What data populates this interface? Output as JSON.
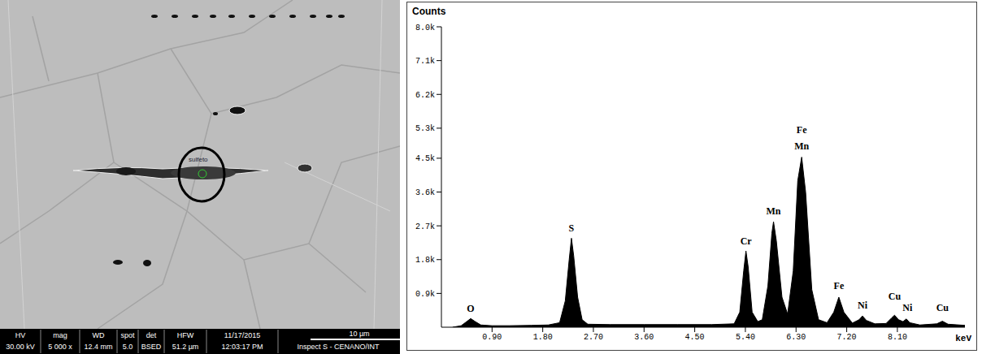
{
  "micrograph": {
    "label": "sulfeto",
    "databar": {
      "headers": [
        "HV",
        "mag",
        "WD",
        "spot",
        "det",
        "HFW",
        "11/17/2015"
      ],
      "values": [
        "30.00 kV",
        "5 000 x",
        "12.4 mm",
        "5.0",
        "BSED",
        "51.2 µm",
        "12:03:17 PM"
      ]
    },
    "scale_bar": "10 µm",
    "instrument": "Inspect S - CENANO/INT"
  },
  "chart_data": {
    "type": "area",
    "ylabel": "Counts",
    "xlabel": "keV",
    "color": "#000000",
    "grid": false,
    "xlim": [
      0,
      9.3
    ],
    "ylim": [
      0,
      8000
    ],
    "xticks": [
      {
        "value": 0.9,
        "label": "0.90"
      },
      {
        "value": 1.8,
        "label": "1.80"
      },
      {
        "value": 2.7,
        "label": "2.70"
      },
      {
        "value": 3.6,
        "label": "3.60"
      },
      {
        "value": 4.5,
        "label": "4.50"
      },
      {
        "value": 5.4,
        "label": "5.40"
      },
      {
        "value": 6.3,
        "label": "6.30"
      },
      {
        "value": 7.2,
        "label": "7.20"
      },
      {
        "value": 8.1,
        "label": "8.10"
      }
    ],
    "yticks": [
      {
        "value": 900,
        "label": "0.9k"
      },
      {
        "value": 1800,
        "label": "1.8k"
      },
      {
        "value": 2700,
        "label": "2.7k"
      },
      {
        "value": 3600,
        "label": "3.6k"
      },
      {
        "value": 4500,
        "label": "4.5k"
      },
      {
        "value": 5300,
        "label": "5.3k"
      },
      {
        "value": 6200,
        "label": "6.2k"
      },
      {
        "value": 7100,
        "label": "7.1k"
      },
      {
        "value": 8000,
        "label": "8.0k"
      }
    ],
    "x": [
      0.2,
      0.35,
      0.45,
      0.52,
      0.6,
      0.7,
      0.9,
      1.2,
      1.6,
      1.9,
      2.1,
      2.2,
      2.27,
      2.31,
      2.35,
      2.42,
      2.5,
      2.6,
      3.0,
      3.6,
      4.2,
      4.8,
      5.2,
      5.3,
      5.37,
      5.41,
      5.45,
      5.52,
      5.62,
      5.7,
      5.8,
      5.87,
      5.9,
      5.95,
      6.05,
      6.15,
      6.25,
      6.33,
      6.4,
      6.47,
      6.58,
      6.7,
      6.85,
      6.97,
      7.06,
      7.15,
      7.3,
      7.42,
      7.48,
      7.55,
      7.7,
      7.9,
      8.0,
      8.05,
      8.12,
      8.2,
      8.26,
      8.32,
      8.5,
      8.8,
      8.9,
      9.0,
      9.3
    ],
    "values": [
      0,
      40,
      150,
      230,
      150,
      60,
      40,
      40,
      50,
      60,
      120,
      700,
      1800,
      2370,
      1900,
      800,
      200,
      80,
      70,
      70,
      70,
      70,
      90,
      400,
      1500,
      2030,
      1600,
      400,
      150,
      200,
      1100,
      2500,
      2810,
      2300,
      800,
      350,
      1500,
      3900,
      4530,
      3600,
      1000,
      200,
      120,
      400,
      800,
      400,
      110,
      200,
      300,
      180,
      90,
      100,
      250,
      320,
      200,
      150,
      220,
      120,
      60,
      90,
      160,
      80,
      50
    ],
    "annotations": [
      {
        "text": "O",
        "x": 0.52,
        "y": 300
      },
      {
        "text": "S",
        "x": 2.31,
        "y": 2450
      },
      {
        "text": "Cr",
        "x": 5.41,
        "y": 2100
      },
      {
        "text": "Mn",
        "x": 5.9,
        "y": 2900
      },
      {
        "text": "Mn",
        "x": 6.4,
        "y": 4620
      },
      {
        "text": "Fe",
        "x": 6.4,
        "y": 5050
      },
      {
        "text": "Fe",
        "x": 7.06,
        "y": 900
      },
      {
        "text": "Ni",
        "x": 7.48,
        "y": 400
      },
      {
        "text": "Cu",
        "x": 8.05,
        "y": 620
      },
      {
        "text": "Ni",
        "x": 8.28,
        "y": 330
      },
      {
        "text": "Cu",
        "x": 8.9,
        "y": 330
      }
    ]
  }
}
